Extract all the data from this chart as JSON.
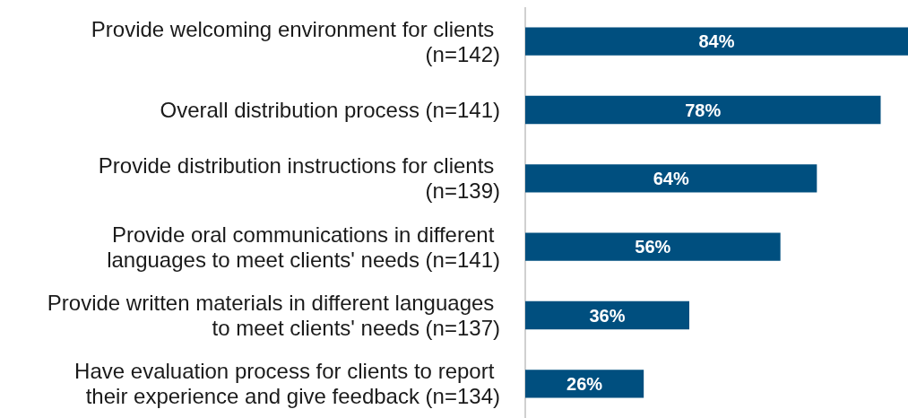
{
  "chart_data": {
    "type": "bar",
    "orientation": "horizontal",
    "categories": [
      "Provide welcoming environment for clients (n=142)",
      "Overall distribution process (n=141)",
      "Provide distribution instructions for clients (n=139)",
      "Provide oral communications in different languages to meet clients' needs (n=141)",
      "Provide written materials in different languages to meet clients' needs (n=137)",
      "Have evaluation process for clients to report their experience and give feedback (n=134)"
    ],
    "values": [
      84,
      78,
      64,
      56,
      36,
      26
    ],
    "value_labels": [
      "84%",
      "78%",
      "64%",
      "56%",
      "36%",
      "26%"
    ],
    "color": "#004f7f",
    "xlim": [
      0,
      84
    ]
  }
}
